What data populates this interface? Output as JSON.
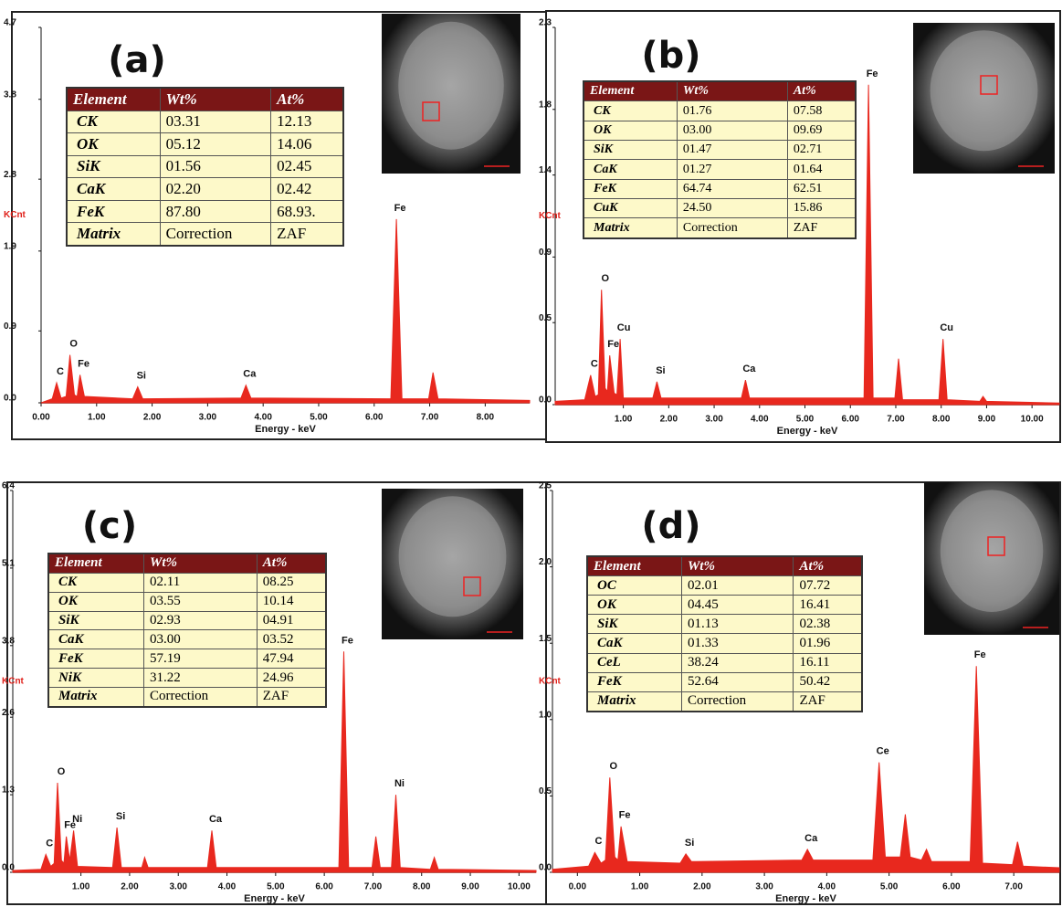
{
  "chart_data": [
    {
      "type": "spectrum",
      "panel_label": "(a)",
      "y_label": "KCnt",
      "x_label": "Energy - keV",
      "color": "#e8281e",
      "xlim": [
        0,
        8.8
      ],
      "ylim": [
        0,
        4.7
      ],
      "xticks": [
        {
          "value": 0,
          "label": "0.00"
        },
        {
          "value": 1,
          "label": "1.00"
        },
        {
          "value": 2,
          "label": "2.00"
        },
        {
          "value": 3,
          "label": "3.00"
        },
        {
          "value": 4,
          "label": "4.00"
        },
        {
          "value": 5,
          "label": "5.00"
        },
        {
          "value": 6,
          "label": "6.00"
        },
        {
          "value": 7,
          "label": "7.00"
        },
        {
          "value": 8,
          "label": "8.00"
        }
      ],
      "yticks": [
        {
          "value": 0,
          "label": "0.0"
        },
        0.9,
        1.9,
        2.8,
        3.8,
        4.7
      ],
      "x": [
        0,
        0.2,
        0.28,
        0.36,
        0.45,
        0.52,
        0.6,
        0.65,
        0.7,
        0.78,
        1.65,
        1.74,
        1.83,
        3.6,
        3.69,
        3.78,
        6.3,
        6.4,
        6.5,
        6.98,
        7.06,
        7.15,
        8.8
      ],
      "values": [
        0.0,
        0.05,
        0.25,
        0.06,
        0.08,
        0.6,
        0.1,
        0.08,
        0.35,
        0.08,
        0.05,
        0.2,
        0.05,
        0.06,
        0.22,
        0.06,
        0.05,
        2.3,
        0.05,
        0.05,
        0.38,
        0.05,
        0.03
      ],
      "peak_labels": [
        {
          "text": "C",
          "x": 0.28
        },
        {
          "text": "O",
          "x": 0.52
        },
        {
          "text": "Fe",
          "x": 0.7
        },
        {
          "text": "Si",
          "x": 1.74
        },
        {
          "text": "Ca",
          "x": 3.69
        },
        {
          "text": "Fe",
          "x": 6.4
        }
      ],
      "table": {
        "columns": [
          "Element",
          "Wt%",
          "At%"
        ],
        "rows": [
          [
            "CK",
            "03.31",
            "12.13"
          ],
          [
            "OK",
            "05.12",
            "14.06"
          ],
          [
            "SiK",
            "01.56",
            "02.45"
          ],
          [
            "CaK",
            "02.20",
            "02.42"
          ],
          [
            "FeK",
            "87.80",
            "68.93."
          ],
          [
            "Matrix",
            "Correction",
            "ZAF"
          ]
        ]
      }
    },
    {
      "type": "spectrum",
      "panel_label": "(b)",
      "y_label": "KCnt",
      "x_label": "Energy - keV",
      "color": "#e8281e",
      "xlim": [
        -0.5,
        10.6
      ],
      "ylim": [
        0,
        2.3
      ],
      "xticks": [
        {
          "value": 1,
          "label": "1.00"
        },
        {
          "value": 2,
          "label": "2.00"
        },
        {
          "value": 3,
          "label": "3.00"
        },
        {
          "value": 4,
          "label": "4.00"
        },
        {
          "value": 5,
          "label": "5.00"
        },
        {
          "value": 6,
          "label": "6.00"
        },
        {
          "value": 7,
          "label": "7.00"
        },
        {
          "value": 8,
          "label": "8.00"
        },
        {
          "value": 9,
          "label": "9.00"
        },
        {
          "value": 10,
          "label": "10.00"
        }
      ],
      "yticks": [
        {
          "value": 0,
          "label": "0.0"
        },
        0.5,
        0.9,
        1.4,
        1.8,
        2.3
      ],
      "x": [
        -0.5,
        0.15,
        0.28,
        0.38,
        0.45,
        0.52,
        0.6,
        0.65,
        0.7,
        0.8,
        0.86,
        0.93,
        1.0,
        1.65,
        1.74,
        1.83,
        3.6,
        3.69,
        3.78,
        6.3,
        6.4,
        6.5,
        6.98,
        7.06,
        7.15,
        7.95,
        8.04,
        8.13,
        8.85,
        8.92,
        9.0,
        10.6
      ],
      "values": [
        0.02,
        0.03,
        0.18,
        0.05,
        0.06,
        0.7,
        0.1,
        0.08,
        0.3,
        0.07,
        0.06,
        0.4,
        0.04,
        0.04,
        0.14,
        0.04,
        0.04,
        0.15,
        0.04,
        0.04,
        1.95,
        0.04,
        0.04,
        0.28,
        0.03,
        0.03,
        0.4,
        0.03,
        0.02,
        0.05,
        0.02,
        0.01
      ],
      "peak_labels": [
        {
          "text": "C",
          "x": 0.28
        },
        {
          "text": "O",
          "x": 0.52
        },
        {
          "text": "Fe",
          "x": 0.7
        },
        {
          "text": "Cu",
          "x": 0.93
        },
        {
          "text": "Si",
          "x": 1.74
        },
        {
          "text": "Ca",
          "x": 3.69
        },
        {
          "text": "Fe",
          "x": 6.4
        },
        {
          "text": "Cu",
          "x": 8.04
        }
      ],
      "table": {
        "columns": [
          "Element",
          "Wt%",
          "At%"
        ],
        "rows": [
          [
            "CK",
            "01.76",
            "07.58"
          ],
          [
            "OK",
            "03.00",
            "09.69"
          ],
          [
            "SiK",
            "01.47",
            "02.71"
          ],
          [
            "CaK",
            "01.27",
            "01.64"
          ],
          [
            "FeK",
            "64.74",
            "62.51"
          ],
          [
            "CuK",
            "24.50",
            "15.86"
          ],
          [
            "Matrix",
            "Correction",
            "ZAF"
          ]
        ]
      }
    },
    {
      "type": "spectrum",
      "panel_label": "(c)",
      "y_label": "KCnt",
      "x_label": "Energy - keV",
      "color": "#e8281e",
      "xlim": [
        -0.4,
        10.35
      ],
      "ylim": [
        0,
        6.4
      ],
      "xticks": [
        {
          "value": 1,
          "label": "1.00"
        },
        {
          "value": 2,
          "label": "2.00"
        },
        {
          "value": 3,
          "label": "3.00"
        },
        {
          "value": 4,
          "label": "4.00"
        },
        {
          "value": 5,
          "label": "5.00"
        },
        {
          "value": 6,
          "label": "6.00"
        },
        {
          "value": 7,
          "label": "7.00"
        },
        {
          "value": 8,
          "label": "8.00"
        },
        {
          "value": 9,
          "label": "9.00"
        },
        {
          "value": 10,
          "label": "10.00"
        }
      ],
      "yticks": [
        {
          "value": 0,
          "label": "0.0"
        },
        1.3,
        2.6,
        3.8,
        5.1,
        6.4
      ],
      "x": [
        -0.4,
        0.18,
        0.28,
        0.38,
        0.45,
        0.52,
        0.6,
        0.65,
        0.7,
        0.77,
        0.85,
        0.93,
        1.65,
        1.74,
        1.83,
        2.25,
        2.31,
        2.38,
        3.6,
        3.69,
        3.78,
        6.3,
        6.4,
        6.5,
        6.98,
        7.06,
        7.15,
        7.38,
        7.47,
        7.56,
        8.18,
        8.26,
        8.34,
        10.35
      ],
      "values": [
        0.03,
        0.05,
        0.3,
        0.1,
        0.15,
        1.5,
        0.2,
        0.15,
        0.6,
        0.2,
        0.7,
        0.1,
        0.08,
        0.75,
        0.08,
        0.08,
        0.25,
        0.08,
        0.08,
        0.7,
        0.08,
        0.08,
        3.7,
        0.08,
        0.08,
        0.6,
        0.08,
        0.08,
        1.3,
        0.08,
        0.05,
        0.25,
        0.05,
        0.03
      ],
      "peak_labels": [
        {
          "text": "C",
          "x": 0.28
        },
        {
          "text": "O",
          "x": 0.52
        },
        {
          "text": "Fe",
          "x": 0.7
        },
        {
          "text": "Ni",
          "x": 0.85
        },
        {
          "text": "Si",
          "x": 1.74
        },
        {
          "text": "Ca",
          "x": 3.69
        },
        {
          "text": "Fe",
          "x": 6.4
        },
        {
          "text": "Ni",
          "x": 7.47
        }
      ],
      "table": {
        "columns": [
          "Element",
          "Wt%",
          "At%"
        ],
        "rows": [
          [
            "CK",
            "02.11",
            "08.25"
          ],
          [
            "OK",
            "03.55",
            "10.14"
          ],
          [
            "SiK",
            "02.93",
            "04.91"
          ],
          [
            "CaK",
            "03.00",
            "03.52"
          ],
          [
            "FeK",
            "57.19",
            "47.94"
          ],
          [
            "NiK",
            "31.22",
            "24.96"
          ],
          [
            "Matrix",
            "Correction",
            "ZAF"
          ]
        ]
      }
    },
    {
      "type": "spectrum",
      "panel_label": "(d)",
      "y_label": "KCnt",
      "x_label": "Energy - keV",
      "color": "#e8281e",
      "xlim": [
        -0.4,
        7.73
      ],
      "ylim": [
        0,
        2.5
      ],
      "xticks": [
        {
          "value": 0,
          "label": "0.00"
        },
        {
          "value": 1,
          "label": "1.00"
        },
        {
          "value": 2,
          "label": "2.00"
        },
        {
          "value": 3,
          "label": "3.00"
        },
        {
          "value": 4,
          "label": "4.00"
        },
        {
          "value": 5,
          "label": "5.00"
        },
        {
          "value": 6,
          "label": "6.00"
        },
        {
          "value": 7,
          "label": "7.00"
        }
      ],
      "yticks": [
        {
          "value": 0,
          "label": "0.0"
        },
        0.5,
        {
          "value": 1,
          "label": "1.0"
        },
        1.5,
        {
          "value": 2,
          "label": "2.0"
        },
        2.5
      ],
      "x": [
        -0.4,
        0.18,
        0.28,
        0.38,
        0.45,
        0.52,
        0.6,
        0.65,
        0.7,
        0.8,
        1.65,
        1.74,
        1.83,
        3.6,
        3.69,
        3.78,
        4.74,
        4.84,
        4.94,
        5.18,
        5.26,
        5.34,
        5.52,
        5.6,
        5.68,
        6.3,
        6.4,
        6.5,
        6.98,
        7.06,
        7.15,
        7.73
      ],
      "values": [
        0.02,
        0.04,
        0.13,
        0.06,
        0.08,
        0.62,
        0.1,
        0.08,
        0.3,
        0.07,
        0.06,
        0.12,
        0.07,
        0.08,
        0.15,
        0.08,
        0.08,
        0.72,
        0.1,
        0.1,
        0.38,
        0.1,
        0.08,
        0.15,
        0.07,
        0.07,
        1.35,
        0.06,
        0.05,
        0.2,
        0.04,
        0.03
      ],
      "peak_labels": [
        {
          "text": "C",
          "x": 0.28
        },
        {
          "text": "O",
          "x": 0.52
        },
        {
          "text": "Fe",
          "x": 0.7
        },
        {
          "text": "Si",
          "x": 1.74
        },
        {
          "text": "Ca",
          "x": 3.69
        },
        {
          "text": "Ce",
          "x": 4.84
        },
        {
          "text": "Fe",
          "x": 6.4
        }
      ],
      "table": {
        "columns": [
          "Element",
          "Wt%",
          "At%"
        ],
        "rows": [
          [
            "OC",
            "02.01",
            "07.72"
          ],
          [
            "OK",
            "04.45",
            "16.41"
          ],
          [
            "SiK",
            "01.13",
            "02.38"
          ],
          [
            "CaK",
            "01.33",
            "01.96"
          ],
          [
            "CeL",
            "38.24",
            "16.11"
          ],
          [
            "FeK",
            "52.64",
            "50.42"
          ],
          [
            "Matrix",
            "Correction",
            "ZAF"
          ]
        ]
      }
    }
  ]
}
